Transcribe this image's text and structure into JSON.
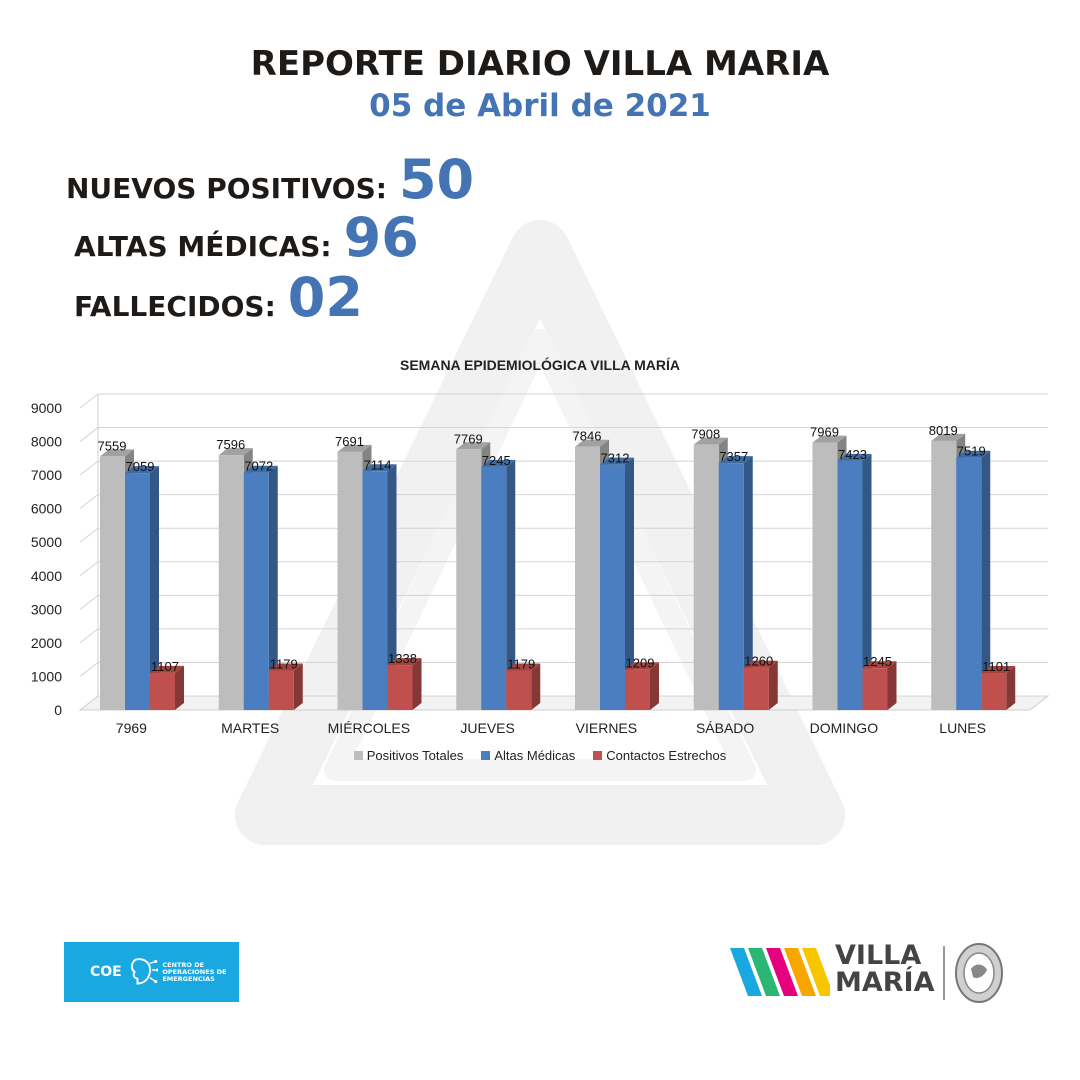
{
  "header": {
    "title": "REPORTE DIARIO VILLA MARIA",
    "date": "05 de Abril de 2021"
  },
  "stats": [
    {
      "label": "NUEVOS POSITIVOS:",
      "value": "50"
    },
    {
      "label": "ALTAS MÉDICAS:",
      "value": "96"
    },
    {
      "label": "FALLECIDOS:",
      "value": "02"
    }
  ],
  "chart_data": {
    "type": "bar",
    "title": "SEMANA EPIDEMIOLÓGICA VILLA MARÍA",
    "categories": [
      "7969",
      "MARTES",
      "MIÉRCOLES",
      "JUEVES",
      "VIERNES",
      "SÁBADO",
      "DOMINGO",
      "LUNES"
    ],
    "series": [
      {
        "name": "Positivos Totales",
        "color": "#bdbdbd",
        "values": [
          7559,
          7596,
          7691,
          7769,
          7846,
          7908,
          7969,
          8019
        ]
      },
      {
        "name": "Altas Médicas",
        "color": "#4a7ec0",
        "values": [
          7059,
          7072,
          7114,
          7245,
          7312,
          7357,
          7423,
          7519
        ]
      },
      {
        "name": "Contactos Estrechos",
        "color": "#c0504d",
        "values": [
          1107,
          1179,
          1338,
          1179,
          1209,
          1260,
          1245,
          1101
        ]
      }
    ],
    "ylim": [
      0,
      9000
    ],
    "yticks": [
      0,
      1000,
      2000,
      3000,
      4000,
      5000,
      6000,
      7000,
      8000,
      9000
    ],
    "grid": true,
    "legend": "bottom",
    "style": "3d-clustered"
  },
  "logos": {
    "coe": {
      "word": "COE",
      "text": "CENTRO DE OPERACIONES DE EMERGENCIAS"
    },
    "villa_maria": {
      "line1": "VILLA",
      "line2": "MARÍA"
    }
  },
  "colors": {
    "accent_blue": "#4474b4",
    "title_dark": "#1e1a17",
    "coe_blue": "#1aa8e0"
  }
}
